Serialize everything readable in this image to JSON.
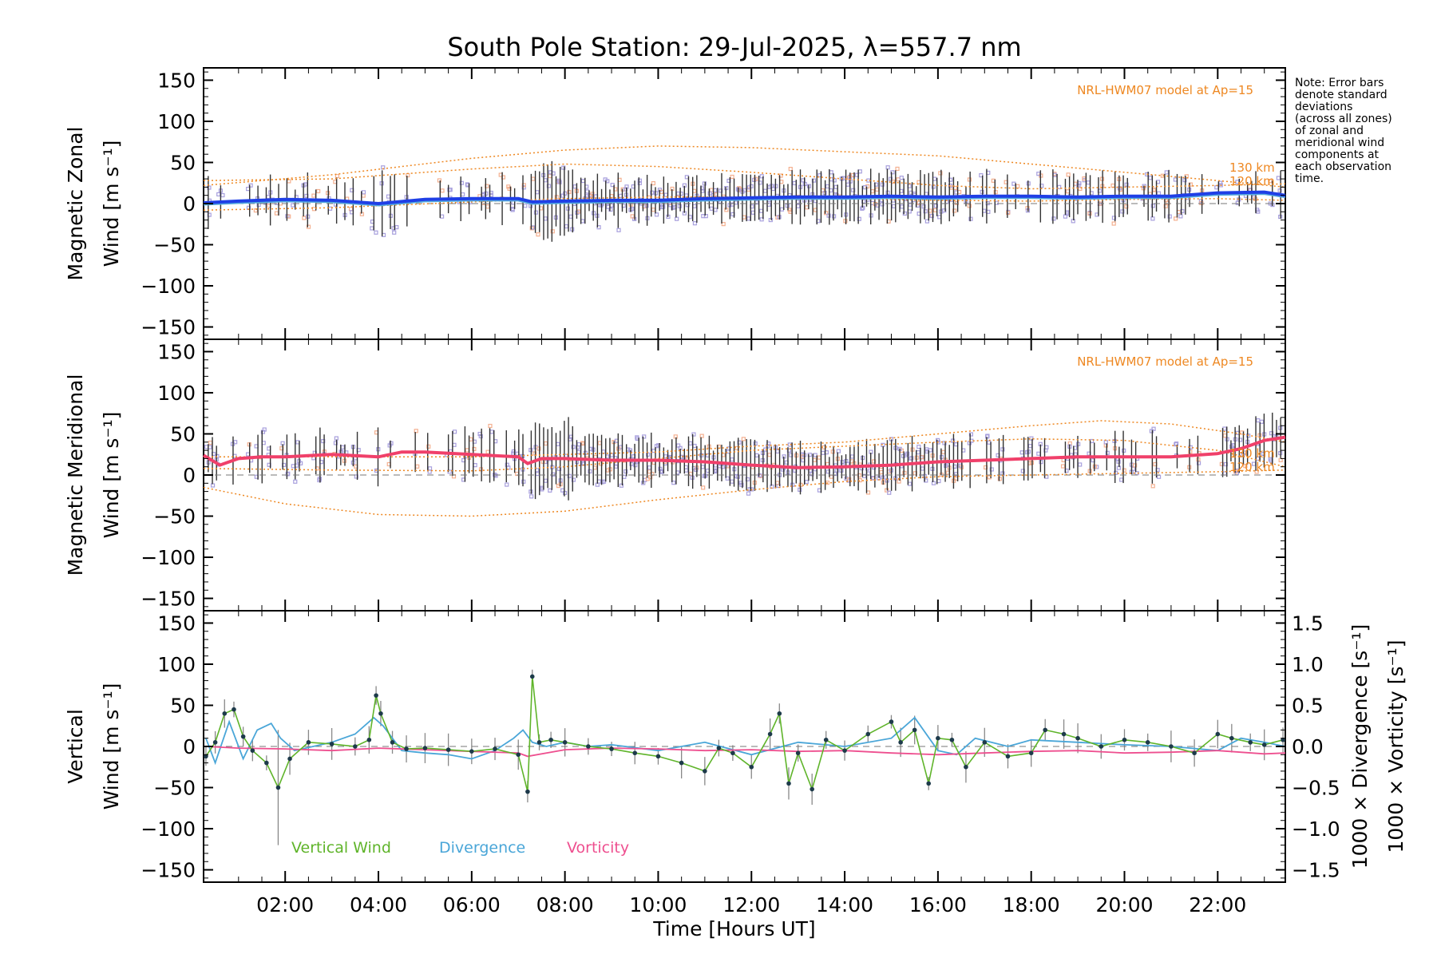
{
  "colors": {
    "zonal": "#1f3fe6",
    "zonal_light": "#55aadd",
    "meridional": "#f0406a",
    "model": "#ee8822",
    "scatter": "#a8a0dd",
    "scatter_pink": "#f4b090",
    "vertical": "#5fb42a",
    "divergence": "#4aa6d8",
    "vorticity": "#ee4f8f",
    "errorbar": "#333333"
  },
  "chart_data": {
    "type": "line",
    "title": "South Pole Station: 29-Jul-2025, λ=557.7 nm",
    "xlabel": "Time [Hours UT]",
    "xlim": [
      0.25,
      23.45
    ],
    "xticks": [
      {
        "x": 2,
        "label": "02:00"
      },
      {
        "x": 4,
        "label": "04:00"
      },
      {
        "x": 6,
        "label": "06:00"
      },
      {
        "x": 8,
        "label": "08:00"
      },
      {
        "x": 10,
        "label": "10:00"
      },
      {
        "x": 12,
        "label": "12:00"
      },
      {
        "x": 14,
        "label": "14:00"
      },
      {
        "x": 16,
        "label": "16:00"
      },
      {
        "x": 18,
        "label": "18:00"
      },
      {
        "x": 20,
        "label": "20:00"
      },
      {
        "x": 22,
        "label": "22:00"
      }
    ],
    "note_lines": [
      "Note: Error bars",
      "denote standard",
      "deviations",
      "(across all zones)",
      "of zonal and",
      "meridional wind",
      "components at",
      "each observation",
      "time."
    ],
    "panels": [
      {
        "id": "zonal",
        "ylabel_line1": "Magnetic Zonal",
        "ylabel_line2": "Wind [m s⁻¹]",
        "ylim": [
          -165,
          165
        ],
        "yticks": [
          -150,
          -100,
          -50,
          0,
          50,
          100,
          150
        ],
        "ytick_labels": [
          "−150",
          "−100",
          "−50",
          "0",
          "50",
          "100",
          "150"
        ],
        "model_label": "NRL-HWM07 model at Ap=15",
        "model_alt_labels": [
          "130 km",
          "120 km"
        ],
        "series": [
          {
            "name": "Zonal wind (mean)",
            "x": [
              0.25,
              1,
              2,
              3,
              4,
              5,
              6,
              7,
              7.3,
              8,
              9,
              10,
              11,
              12,
              13,
              14,
              15,
              16,
              17,
              18,
              19,
              20,
              21,
              22,
              23,
              23.45
            ],
            "y": [
              1,
              3,
              5,
              4,
              0,
              5,
              6,
              6,
              2,
              3,
              4,
              4,
              6,
              7,
              8,
              8,
              9,
              8,
              9,
              9,
              8,
              9,
              9,
              13,
              14,
              10
            ]
          }
        ],
        "model_curves": [
          {
            "name": "model upper",
            "x": [
              0.25,
              3,
              6,
              8,
              10,
              12,
              14,
              16,
              18,
              20,
              22,
              23.45
            ],
            "y": [
              22,
              35,
              55,
              65,
              70,
              68,
              63,
              58,
              48,
              38,
              28,
              20
            ]
          },
          {
            "name": "model middle",
            "x": [
              0.25,
              3,
              6,
              8,
              10,
              12,
              14,
              16,
              18,
              20,
              22,
              23.45
            ],
            "y": [
              28,
              30,
              42,
              48,
              45,
              38,
              30,
              22,
              18,
              20,
              22,
              24
            ]
          },
          {
            "name": "model lower",
            "x": [
              0.25,
              3,
              6,
              8,
              10,
              12,
              14,
              16,
              18,
              20,
              22,
              23.45
            ],
            "y": [
              -8,
              -5,
              2,
              6,
              8,
              8,
              6,
              4,
              3,
              5,
              6,
              4
            ]
          }
        ]
      },
      {
        "id": "meridional",
        "ylabel_line1": "Magnetic Meridional",
        "ylabel_line2": "Wind [m s⁻¹]",
        "ylim": [
          -165,
          165
        ],
        "yticks": [
          -150,
          -100,
          -50,
          0,
          50,
          100,
          150
        ],
        "ytick_labels": [
          "−150",
          "−100",
          "−50",
          "0",
          "50",
          "100",
          "150"
        ],
        "model_label": "NRL-HWM07 model at Ap=15",
        "model_alt_labels": [
          "130 km",
          "120 km"
        ],
        "series": [
          {
            "name": "Meridional wind (mean)",
            "x": [
              0.25,
              0.6,
              1,
              1.5,
              2,
              3,
              4,
              4.5,
              5,
              6,
              7,
              7.2,
              7.5,
              8,
              9,
              10,
              11,
              12,
              13,
              14,
              15,
              16,
              17,
              18,
              19,
              20,
              21,
              22,
              22.5,
              23,
              23.45
            ],
            "y": [
              24,
              12,
              20,
              22,
              22,
              25,
              22,
              28,
              28,
              25,
              22,
              14,
              20,
              20,
              18,
              18,
              16,
              12,
              9,
              10,
              12,
              16,
              18,
              20,
              22,
              22,
              22,
              26,
              32,
              42,
              46
            ]
          }
        ],
        "model_curves": [
          {
            "name": "model upper",
            "x": [
              0.25,
              3,
              6,
              8,
              10,
              12,
              14,
              16,
              18,
              19.5,
              21,
              22.5,
              23.45
            ],
            "y": [
              22,
              22,
              22,
              25,
              28,
              35,
              40,
              50,
              60,
              66,
              62,
              50,
              40
            ]
          },
          {
            "name": "model middle",
            "x": [
              0.25,
              3,
              6,
              8,
              10,
              12,
              14,
              16,
              18,
              20,
              22,
              23.45
            ],
            "y": [
              8,
              6,
              5,
              10,
              20,
              30,
              35,
              40,
              44,
              42,
              30,
              10
            ]
          },
          {
            "name": "model lower",
            "x": [
              0.25,
              2,
              4,
              6,
              8,
              10,
              12,
              14,
              16,
              18,
              20,
              22,
              23.45
            ],
            "y": [
              -15,
              -35,
              -48,
              -50,
              -44,
              -30,
              -18,
              -8,
              -2,
              0,
              2,
              4,
              6
            ]
          }
        ]
      },
      {
        "id": "vertical",
        "ylabel_line1": "Vertical",
        "ylabel_line2": "Wind [m s⁻¹]",
        "ylim": [
          -165,
          165
        ],
        "yticks": [
          -150,
          -100,
          -50,
          0,
          50,
          100,
          150
        ],
        "ytick_labels": [
          "−150",
          "−100",
          "−50",
          "0",
          "50",
          "100",
          "150"
        ],
        "right_ylim": [
          -1.65,
          1.65
        ],
        "right_yticks": [
          -1.5,
          -1.0,
          -0.5,
          0.0,
          0.5,
          1.0,
          1.5
        ],
        "right_ytick_labels": [
          "−1.5",
          "−1.0",
          "−0.5",
          "0.0",
          "0.5",
          "1.0",
          "1.5"
        ],
        "right_label_1": "1000 × Divergence [s⁻¹]",
        "right_label_2": "1000 × Vorticity [s⁻¹]",
        "legend": [
          "Vertical Wind",
          "Divergence",
          "Vorticity"
        ],
        "series": [
          {
            "name": "Vertical Wind",
            "x": [
              0.3,
              0.5,
              0.7,
              0.9,
              1.1,
              1.3,
              1.6,
              1.85,
              2.1,
              2.5,
              3.0,
              3.5,
              3.8,
              3.95,
              4.05,
              4.3,
              4.6,
              5.0,
              5.5,
              6.0,
              6.5,
              7.0,
              7.2,
              7.3,
              7.45,
              7.7,
              8.0,
              8.5,
              9.0,
              9.5,
              10.0,
              10.5,
              11.0,
              11.3,
              11.6,
              12.0,
              12.4,
              12.6,
              12.8,
              13.0,
              13.3,
              13.6,
              14.0,
              14.5,
              15.0,
              15.2,
              15.5,
              15.8,
              16.0,
              16.3,
              16.6,
              17.0,
              17.5,
              18.0,
              18.3,
              18.7,
              19.0,
              19.5,
              20.0,
              20.5,
              21.0,
              21.5,
              22.0,
              22.3,
              22.7,
              23.0,
              23.4
            ],
            "y": [
              -12,
              5,
              40,
              45,
              12,
              -5,
              -20,
              -50,
              -15,
              5,
              3,
              0,
              8,
              62,
              40,
              5,
              -3,
              -2,
              -4,
              -6,
              -3,
              -10,
              -55,
              85,
              5,
              8,
              5,
              0,
              -3,
              -8,
              -12,
              -20,
              -30,
              -2,
              -8,
              -25,
              15,
              40,
              -45,
              -8,
              -52,
              8,
              -5,
              15,
              30,
              5,
              20,
              -45,
              10,
              8,
              -25,
              5,
              -12,
              -8,
              20,
              15,
              10,
              0,
              8,
              5,
              0,
              -8,
              15,
              10,
              5,
              2,
              8
            ]
          },
          {
            "name": "Divergence",
            "x": [
              0.3,
              0.5,
              0.8,
              1.1,
              1.4,
              1.7,
              1.9,
              2.2,
              2.6,
              3.0,
              3.5,
              3.9,
              4.1,
              4.5,
              5.0,
              5.5,
              6.0,
              6.5,
              6.9,
              7.1,
              7.3,
              7.6,
              8.0,
              8.5,
              9.0,
              10.0,
              11.0,
              12.0,
              13.0,
              14.0,
              15.0,
              15.5,
              16.0,
              16.4,
              16.8,
              17.5,
              18.0,
              19.0,
              20.0,
              21.0,
              22.0,
              22.5,
              23.0,
              23.45
            ],
            "y": [
              0.1,
              -0.2,
              0.3,
              -0.15,
              0.2,
              0.28,
              0.1,
              -0.05,
              0.0,
              0.05,
              0.15,
              0.35,
              0.25,
              -0.05,
              -0.08,
              -0.1,
              -0.15,
              -0.05,
              0.1,
              0.2,
              0.05,
              0.0,
              0.05,
              0.0,
              0.02,
              -0.05,
              0.05,
              -0.1,
              0.05,
              0.0,
              0.1,
              0.35,
              -0.05,
              -0.1,
              0.1,
              0.0,
              0.08,
              0.05,
              0.02,
              0.0,
              -0.05,
              0.1,
              0.05,
              0.0
            ]
          },
          {
            "name": "Vorticity",
            "x": [
              0.3,
              1,
              2,
              3,
              4,
              5,
              6,
              7,
              7.2,
              8,
              9,
              10,
              11,
              12,
              13,
              14,
              15,
              16,
              17,
              18,
              19,
              20,
              21,
              22,
              23,
              23.45
            ],
            "y": [
              0.0,
              -0.02,
              -0.03,
              -0.05,
              -0.02,
              -0.04,
              -0.06,
              -0.08,
              -0.12,
              -0.04,
              -0.02,
              -0.03,
              -0.05,
              -0.04,
              -0.06,
              -0.05,
              -0.08,
              -0.1,
              -0.08,
              -0.06,
              -0.05,
              -0.08,
              -0.07,
              -0.05,
              -0.09,
              -0.08
            ]
          }
        ]
      }
    ]
  }
}
